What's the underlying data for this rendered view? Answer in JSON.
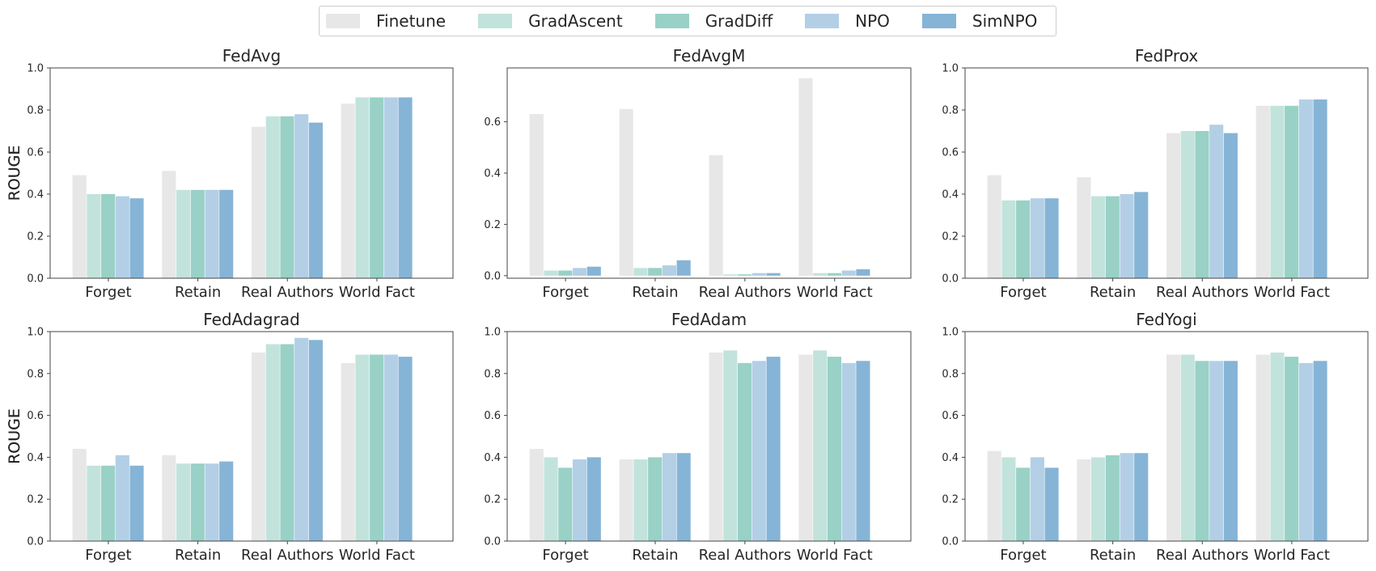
{
  "legend": {
    "items": [
      {
        "label": "Finetune",
        "color": "#e7e7e7"
      },
      {
        "label": "GradAscent",
        "color": "#c2e3dc"
      },
      {
        "label": "GradDiff",
        "color": "#99d1c6"
      },
      {
        "label": "NPO",
        "color": "#b3cfe6"
      },
      {
        "label": "SimNPO",
        "color": "#86b4d6"
      }
    ],
    "placement": "top-center"
  },
  "chart_data": [
    {
      "type": "bar",
      "title": "FedAvg",
      "ylabel": "ROUGE",
      "ylim": [
        0,
        1.0
      ],
      "yticks": [
        "0.0",
        "0.2",
        "0.4",
        "0.6",
        "0.8",
        "1.0"
      ],
      "categories": [
        "Forget",
        "Retain",
        "Real Authors",
        "World Fact"
      ],
      "series": [
        {
          "name": "Finetune",
          "values": [
            0.49,
            0.51,
            0.72,
            0.83
          ]
        },
        {
          "name": "GradAscent",
          "values": [
            0.4,
            0.42,
            0.77,
            0.86
          ]
        },
        {
          "name": "GradDiff",
          "values": [
            0.4,
            0.42,
            0.77,
            0.86
          ]
        },
        {
          "name": "NPO",
          "values": [
            0.39,
            0.42,
            0.78,
            0.86
          ]
        },
        {
          "name": "SimNPO",
          "values": [
            0.38,
            0.42,
            0.74,
            0.86
          ]
        }
      ]
    },
    {
      "type": "bar",
      "title": "FedAvgM",
      "ylabel": "ROUGE",
      "ylim": [
        -0.01,
        0.81
      ],
      "yticks": [
        "0.0",
        "0.2",
        "0.4",
        "0.6"
      ],
      "categories": [
        "Forget",
        "Retain",
        "Real Authors",
        "World Fact"
      ],
      "series": [
        {
          "name": "Finetune",
          "values": [
            0.63,
            0.65,
            0.47,
            0.77
          ]
        },
        {
          "name": "GradAscent",
          "values": [
            0.02,
            0.03,
            0.005,
            0.01
          ]
        },
        {
          "name": "GradDiff",
          "values": [
            0.02,
            0.03,
            0.005,
            0.01
          ]
        },
        {
          "name": "NPO",
          "values": [
            0.03,
            0.04,
            0.01,
            0.02
          ]
        },
        {
          "name": "SimNPO",
          "values": [
            0.035,
            0.06,
            0.01,
            0.025
          ]
        }
      ]
    },
    {
      "type": "bar",
      "title": "FedProx",
      "ylabel": "ROUGE",
      "ylim": [
        0,
        1.0
      ],
      "yticks": [
        "0.0",
        "0.2",
        "0.4",
        "0.6",
        "0.8",
        "1.0"
      ],
      "categories": [
        "Forget",
        "Retain",
        "Real Authors",
        "World Fact"
      ],
      "series": [
        {
          "name": "Finetune",
          "values": [
            0.49,
            0.48,
            0.69,
            0.82
          ]
        },
        {
          "name": "GradAscent",
          "values": [
            0.37,
            0.39,
            0.7,
            0.82
          ]
        },
        {
          "name": "GradDiff",
          "values": [
            0.37,
            0.39,
            0.7,
            0.82
          ]
        },
        {
          "name": "NPO",
          "values": [
            0.38,
            0.4,
            0.73,
            0.85
          ]
        },
        {
          "name": "SimNPO",
          "values": [
            0.38,
            0.41,
            0.69,
            0.85
          ]
        }
      ]
    },
    {
      "type": "bar",
      "title": "FedAdagrad",
      "ylabel": "ROUGE",
      "ylim": [
        0,
        1.0
      ],
      "yticks": [
        "0.0",
        "0.2",
        "0.4",
        "0.6",
        "0.8",
        "1.0"
      ],
      "categories": [
        "Forget",
        "Retain",
        "Real Authors",
        "World Fact"
      ],
      "series": [
        {
          "name": "Finetune",
          "values": [
            0.44,
            0.41,
            0.9,
            0.85
          ]
        },
        {
          "name": "GradAscent",
          "values": [
            0.36,
            0.37,
            0.94,
            0.89
          ]
        },
        {
          "name": "GradDiff",
          "values": [
            0.36,
            0.37,
            0.94,
            0.89
          ]
        },
        {
          "name": "NPO",
          "values": [
            0.41,
            0.37,
            0.97,
            0.89
          ]
        },
        {
          "name": "SimNPO",
          "values": [
            0.36,
            0.38,
            0.96,
            0.88
          ]
        }
      ]
    },
    {
      "type": "bar",
      "title": "FedAdam",
      "ylabel": "ROUGE",
      "ylim": [
        0,
        1.0
      ],
      "yticks": [
        "0.0",
        "0.2",
        "0.4",
        "0.6",
        "0.8",
        "1.0"
      ],
      "categories": [
        "Forget",
        "Retain",
        "Real Authors",
        "World Fact"
      ],
      "series": [
        {
          "name": "Finetune",
          "values": [
            0.44,
            0.39,
            0.9,
            0.89
          ]
        },
        {
          "name": "GradAscent",
          "values": [
            0.4,
            0.39,
            0.91,
            0.91
          ]
        },
        {
          "name": "GradDiff",
          "values": [
            0.35,
            0.4,
            0.85,
            0.88
          ]
        },
        {
          "name": "NPO",
          "values": [
            0.39,
            0.42,
            0.86,
            0.85
          ]
        },
        {
          "name": "SimNPO",
          "values": [
            0.4,
            0.42,
            0.88,
            0.86
          ]
        }
      ]
    },
    {
      "type": "bar",
      "title": "FedYogi",
      "ylabel": "ROUGE",
      "ylim": [
        0,
        1.0
      ],
      "yticks": [
        "0.0",
        "0.2",
        "0.4",
        "0.6",
        "0.8",
        "1.0"
      ],
      "categories": [
        "Forget",
        "Retain",
        "Real Authors",
        "World Fact"
      ],
      "series": [
        {
          "name": "Finetune",
          "values": [
            0.43,
            0.39,
            0.89,
            0.89
          ]
        },
        {
          "name": "GradAscent",
          "values": [
            0.4,
            0.4,
            0.89,
            0.9
          ]
        },
        {
          "name": "GradDiff",
          "values": [
            0.35,
            0.41,
            0.86,
            0.88
          ]
        },
        {
          "name": "NPO",
          "values": [
            0.4,
            0.42,
            0.86,
            0.85
          ]
        },
        {
          "name": "SimNPO",
          "values": [
            0.35,
            0.42,
            0.86,
            0.86
          ]
        }
      ]
    }
  ]
}
